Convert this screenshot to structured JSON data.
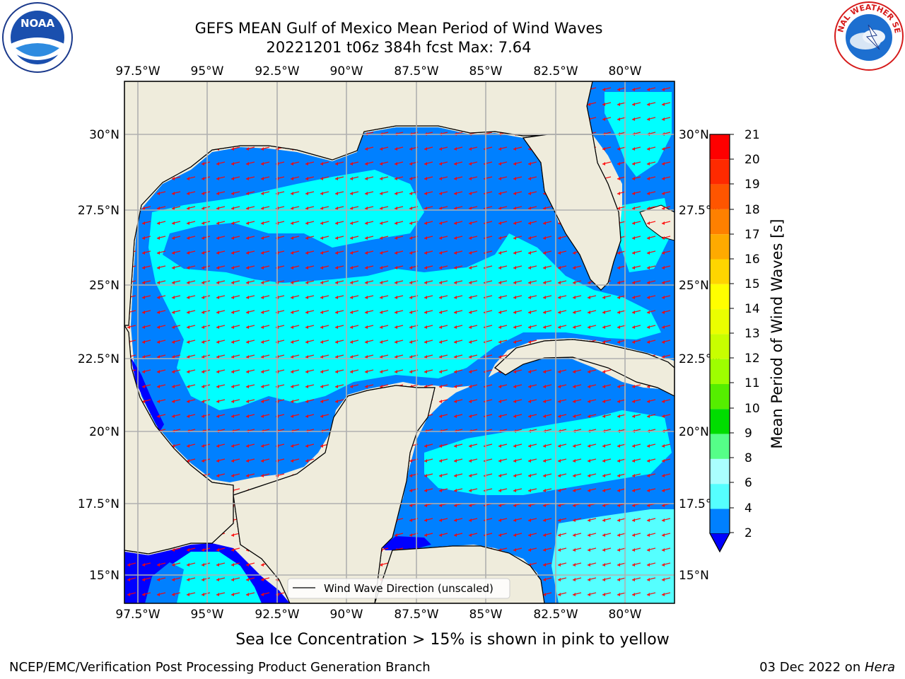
{
  "title_line1": "GEFS MEAN Gulf of Mexico Mean Period of Wind Waves",
  "title_line2": "20221201 t06z 384h fcst   Max: 7.64",
  "logos": {
    "left": "noaa-logo",
    "right": "national-weather-service-logo",
    "left_text": "NOAA",
    "right_text": "NATIONAL WEATHER SERVICE",
    "left_ring_text": "NATIONAL OCEANIC AND ATMOSPHERIC ADMINISTRATION · U.S. DEPARTMENT OF COMMERCE"
  },
  "map": {
    "lon_labels": [
      "97.5°W",
      "95°W",
      "92.5°W",
      "90°W",
      "87.5°W",
      "85°W",
      "82.5°W",
      "80°W"
    ],
    "lat_labels_left": [
      "30°N",
      "27.5°N",
      "25°N",
      "22.5°N",
      "20°N",
      "17.5°N",
      "15°N"
    ],
    "lat_labels_right": [
      "30°N",
      "27.5°N",
      "25°N",
      "22.5°N",
      "20°N",
      "17.5°N",
      "15°N"
    ],
    "legend_label": "Wind Wave Direction (unscaled)",
    "colors": {
      "land": "#efecdc",
      "ocean_light": "#00ffff",
      "ocean_mid": "#0080ff",
      "ocean_deep": "#0000ff",
      "arrows": "#ff0000",
      "grid": "#b0b0b0"
    }
  },
  "colorbar": {
    "label": "Mean Period of Wind Waves [s]",
    "ticks": [
      "21",
      "20",
      "19",
      "18",
      "17",
      "16",
      "15",
      "14",
      "13",
      "12",
      "11",
      "10",
      "9",
      "8",
      "6",
      "4",
      "2"
    ],
    "colors": [
      "#ff0000",
      "#ff2a00",
      "#ff5500",
      "#ff8000",
      "#ffaa00",
      "#ffd500",
      "#ffff00",
      "#eaff00",
      "#c8ff00",
      "#9eff00",
      "#55ee00",
      "#00dd00",
      "#55ff88",
      "#aaffff",
      "#55ffff",
      "#00ffff",
      "#0080ff"
    ],
    "below_color": "#0000ff"
  },
  "footer": {
    "note": "Sea Ice Concentration > 15% is shown in pink to yellow",
    "branch": "NCEP/EMC/Verification Post Processing Product Generation Branch",
    "date_prefix": "03 Dec 2022 on ",
    "date_host": "Hera"
  }
}
